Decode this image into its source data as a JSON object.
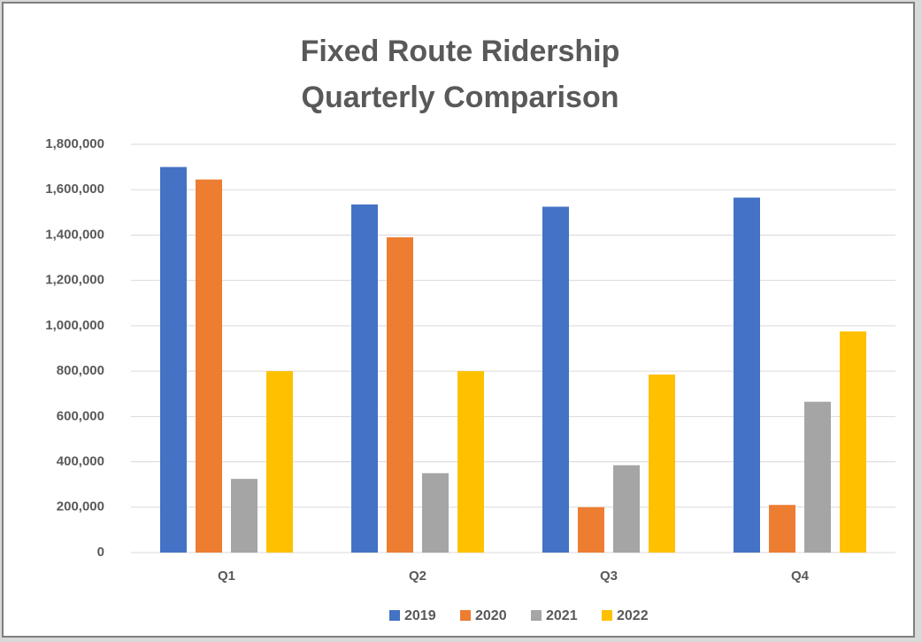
{
  "chart_data": {
    "type": "bar",
    "title": [
      "Fixed Route Ridership",
      "Quarterly Comparison"
    ],
    "categories": [
      "Q1",
      "Q2",
      "Q3",
      "Q4"
    ],
    "series": [
      {
        "name": "2019",
        "color": "#4472c4",
        "values": [
          1700000,
          1535000,
          1525000,
          1565000
        ]
      },
      {
        "name": "2020",
        "color": "#ed7d31",
        "values": [
          1645000,
          1390000,
          200000,
          210000
        ]
      },
      {
        "name": "2021",
        "color": "#a5a5a5",
        "values": [
          325000,
          350000,
          385000,
          665000
        ]
      },
      {
        "name": "2022",
        "color": "#ffc000",
        "values": [
          800000,
          800000,
          785000,
          975000
        ]
      }
    ],
    "ylim": [
      0,
      1800000
    ],
    "yticks": [
      0,
      {
        "value": 200000,
        "label": "200,000"
      },
      {
        "value": 400000,
        "label": "400,000"
      },
      {
        "value": 600000,
        "label": "600,000"
      },
      {
        "value": 800000,
        "label": "800,000"
      },
      {
        "value": 1000000,
        "label": "1,000,000"
      },
      {
        "value": 1200000,
        "label": "1,200,000"
      },
      {
        "value": 1400000,
        "label": "1,400,000"
      },
      {
        "value": 1600000,
        "label": "1,600,000"
      },
      {
        "value": 1800000,
        "label": "1,800,000"
      }
    ],
    "grid": true,
    "legend": "bottom"
  }
}
